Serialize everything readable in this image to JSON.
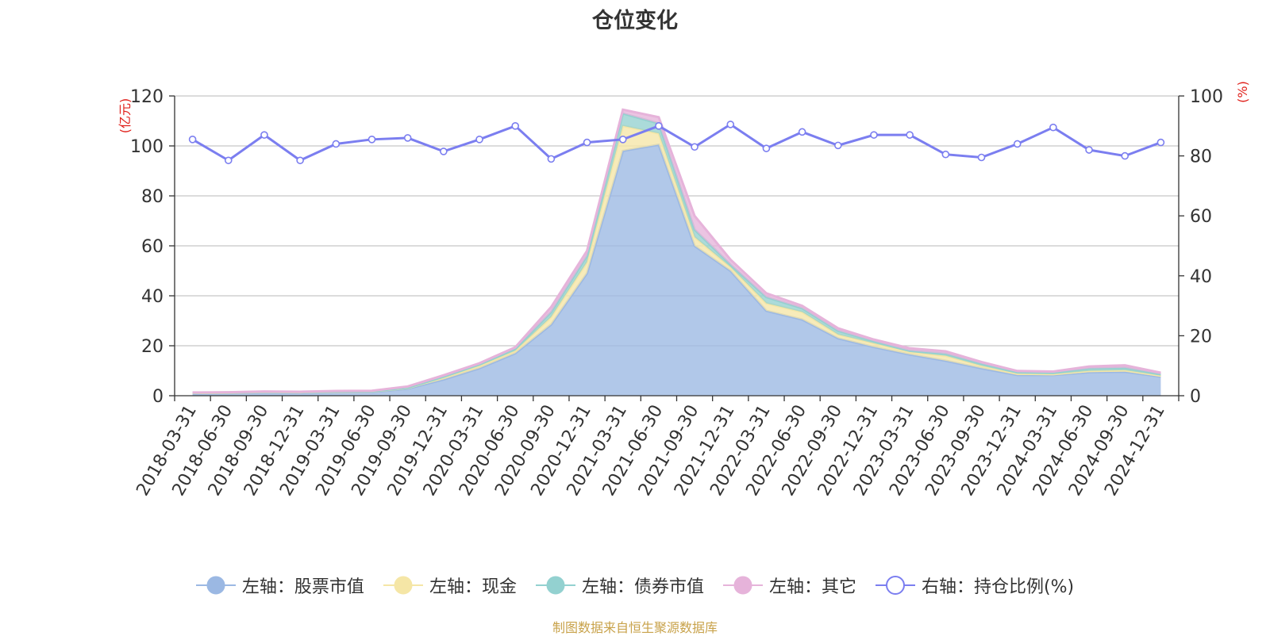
{
  "chart_data": {
    "type": "area",
    "title": "仓位变化",
    "source": "制图数据来自恒生聚源数据库",
    "left_axis": {
      "unit": "(亿元)",
      "min": 0,
      "max": 120,
      "ticks": [
        "0",
        "20",
        "40",
        "60",
        "80",
        "100",
        "120"
      ]
    },
    "right_axis": {
      "unit": "(%)",
      "min": 0,
      "max": 100,
      "ticks": [
        "0",
        "20",
        "40",
        "60",
        "80",
        "100"
      ]
    },
    "grid": true,
    "legend_position": "bottom",
    "categories": [
      "2018-03-31",
      "2018-06-30",
      "2018-09-30",
      "2018-12-31",
      "2019-03-31",
      "2019-06-30",
      "2019-09-30",
      "2019-12-31",
      "2020-03-31",
      "2020-06-30",
      "2020-09-30",
      "2020-12-31",
      "2021-03-31",
      "2021-06-30",
      "2021-09-30",
      "2021-12-31",
      "2022-03-31",
      "2022-06-30",
      "2022-09-30",
      "2022-12-31",
      "2023-03-31",
      "2023-06-30",
      "2023-09-30",
      "2023-12-31",
      "2024-03-31",
      "2024-06-30",
      "2024-09-30",
      "2024-12-31"
    ],
    "series": [
      {
        "name": "左轴：股票市值",
        "axis": "left",
        "stacked": true,
        "color": "#9bb8e3",
        "values": [
          0.9,
          1.0,
          1.3,
          1.2,
          1.4,
          1.5,
          2.8,
          6.5,
          11.0,
          17.0,
          28.5,
          49.0,
          98.0,
          100.5,
          60.0,
          50.0,
          34.0,
          30.5,
          23.0,
          19.5,
          16.5,
          14.0,
          11.0,
          8.3,
          8.3,
          9.4,
          9.6,
          7.6
        ]
      },
      {
        "name": "左轴：现金",
        "axis": "left",
        "stacked": true,
        "color": "#f5e6a6",
        "values": [
          0.2,
          0.2,
          0.2,
          0.2,
          0.2,
          0.2,
          0.3,
          0.8,
          1.0,
          1.0,
          3.0,
          4.5,
          10.0,
          4.5,
          3.5,
          1.5,
          3.0,
          3.0,
          1.5,
          1.5,
          1.0,
          2.0,
          1.0,
          0.5,
          0.3,
          0.5,
          0.6,
          0.4
        ]
      },
      {
        "name": "左轴：债券市值",
        "axis": "left",
        "stacked": true,
        "color": "#93d1d0",
        "values": [
          0.1,
          0.1,
          0.1,
          0.1,
          0.1,
          0.1,
          0.1,
          0.3,
          0.5,
          0.8,
          2.0,
          2.5,
          5.0,
          4.0,
          3.0,
          1.0,
          2.5,
          1.5,
          1.5,
          0.8,
          0.5,
          0.8,
          0.8,
          0.6,
          0.6,
          1.0,
          1.0,
          0.6
        ]
      },
      {
        "name": "左轴：其它",
        "axis": "left",
        "stacked": true,
        "color": "#e6b3da",
        "values": [
          0.1,
          0.1,
          0.1,
          0.1,
          0.2,
          0.2,
          0.5,
          0.6,
          0.5,
          0.6,
          2.0,
          2.0,
          1.5,
          2.5,
          5.5,
          2.0,
          1.5,
          1.0,
          1.0,
          0.7,
          1.0,
          1.0,
          0.7,
          0.5,
          0.5,
          0.8,
          1.0,
          0.6
        ]
      },
      {
        "name": "右轴：持仓比例(%)",
        "axis": "right",
        "stacked": false,
        "color": "#7b7ef0",
        "values": [
          85.5,
          78.5,
          87.0,
          78.5,
          84.0,
          85.5,
          86.0,
          81.5,
          85.5,
          90.0,
          79.0,
          84.5,
          85.5,
          90.0,
          83.0,
          90.5,
          82.5,
          88.0,
          83.5,
          87.0,
          87.0,
          80.5,
          79.5,
          84.0,
          89.5,
          82.0,
          80.0,
          84.5
        ]
      }
    ]
  }
}
